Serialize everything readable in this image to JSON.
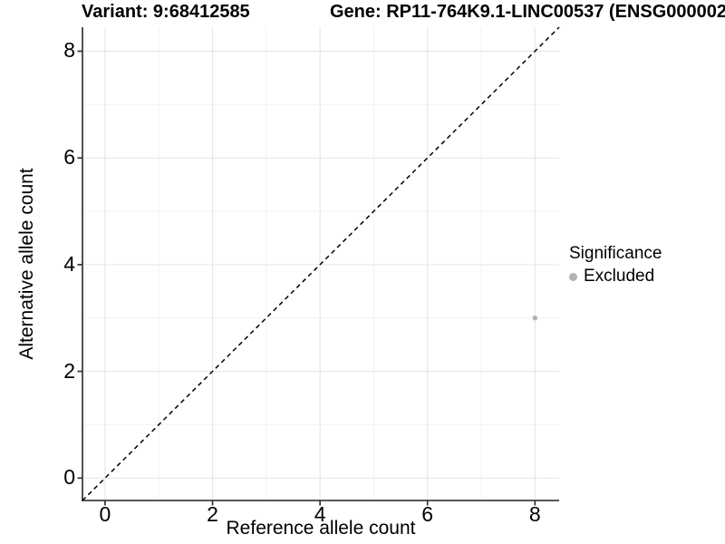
{
  "header": {
    "title_variant": "Variant: 9:68412585",
    "title_gene": "Gene: RP11-764K9.1-LINC00537 (ENSG000002"
  },
  "chart_data": {
    "type": "scatter",
    "xlabel": "Reference allele count",
    "ylabel": "Alternative allele count",
    "xlim": [
      -0.42,
      8.45
    ],
    "ylim": [
      -0.42,
      8.45
    ],
    "x_ticks": [
      0,
      2,
      4,
      6,
      8
    ],
    "y_ticks": [
      0,
      2,
      4,
      6,
      8
    ],
    "x_minor_ticks": [
      1,
      3,
      5,
      7
    ],
    "y_minor_ticks": [
      1,
      3,
      5,
      7
    ],
    "grid": "on",
    "points": [
      {
        "x": 8,
        "y": 3,
        "significance": "Excluded"
      }
    ],
    "reference_line": {
      "slope": 1,
      "intercept": 0,
      "style": "dashed"
    },
    "legend": {
      "title": "Significance",
      "position": "right",
      "items": [
        {
          "label": "Excluded",
          "color": "#b3b3b3"
        }
      ]
    },
    "colors": {
      "point_excluded": "#b3b3b3",
      "grid_major": "#e6e6e6",
      "grid_minor": "#f2f2f2",
      "axis_line": "#3f3f3f",
      "tick_mark": "#333333",
      "reference_line": "#000000",
      "background": "#ffffff"
    }
  }
}
